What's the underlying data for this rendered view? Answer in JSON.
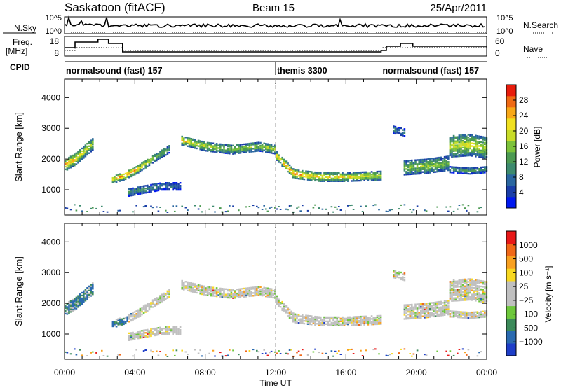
{
  "header": {
    "station": "Saskatoon (fitACF)",
    "beam": "Beam 15",
    "date": "25/Apr/2011"
  },
  "strips": {
    "nsky_label": "N.Sky",
    "nsky_ticks": [
      "10^5",
      "10^0"
    ],
    "nsearch_label": "N.Search",
    "nsearch_ticks": [
      "10^5",
      "10^0"
    ],
    "freq_label": "Freq.",
    "freq_unit": "[MHz]",
    "freq_ticks": [
      "18",
      "8"
    ],
    "nave_label": "Nave",
    "nave_ticks": [
      "60",
      "0"
    ],
    "cpid_label": "CPID"
  },
  "cpid_segments": [
    {
      "label": "normalsound (fast) 157",
      "start_hour": 0.0,
      "end_hour": 12.0
    },
    {
      "label": "themis 3300",
      "start_hour": 12.0,
      "end_hour": 18.0
    },
    {
      "label": "normalsound (fast) 157",
      "start_hour": 18.0,
      "end_hour": 24.0
    }
  ],
  "chart_data": [
    {
      "type": "heatmap",
      "panel": "power",
      "ylabel": "Slant Range [km]",
      "xlabel": "Time UT",
      "xlim_hours": [
        0,
        24
      ],
      "ylim": [
        180,
        4600
      ],
      "xticks": [
        "00:00",
        "04:00",
        "08:00",
        "12:00",
        "16:00",
        "20:00",
        "00:00"
      ],
      "yticks": [
        1000,
        2000,
        3000,
        4000
      ],
      "colorbar": {
        "label": "Power [dB]",
        "ticks": [
          "28",
          "24",
          "20",
          "16",
          "12",
          "8",
          "4"
        ],
        "range": [
          0,
          30
        ],
        "colors": [
          "#0018f0",
          "#1a3ea8",
          "#2a66a0",
          "#3d8a6e",
          "#4c9a52",
          "#7cc23a",
          "#c8dc28",
          "#f0e020",
          "#f8a818",
          "#f06a14",
          "#e81c0c"
        ]
      },
      "traces": [
        {
          "name": "track-a",
          "hours": [
            0.0,
            0.6,
            1.2,
            1.6
          ],
          "ranges": [
            1800,
            2000,
            2300,
            2500
          ],
          "intensity": [
            0.75,
            0.65,
            0.6,
            0.45
          ],
          "halfwidth": 200
        },
        {
          "name": "track-b",
          "hours": [
            2.6,
            3.4,
            4.1,
            5.0,
            6.0
          ],
          "ranges": [
            1300,
            1450,
            1650,
            2000,
            2350
          ],
          "intensity": [
            0.55,
            0.8,
            0.7,
            0.5,
            0.4
          ],
          "halfwidth": 130
        },
        {
          "name": "track-c",
          "hours": [
            6.6,
            8.0,
            9.5,
            11.0,
            12.0
          ],
          "ranges": [
            2600,
            2400,
            2300,
            2400,
            2300
          ],
          "intensity": [
            0.65,
            0.55,
            0.45,
            0.5,
            0.5
          ],
          "halfwidth": 150
        },
        {
          "name": "track-d",
          "hours": [
            12.0,
            13.0,
            14.5,
            16.0,
            18.0
          ],
          "ranges": [
            2100,
            1500,
            1400,
            1400,
            1450
          ],
          "intensity": [
            0.7,
            0.8,
            0.65,
            0.6,
            0.55
          ],
          "halfwidth": 140
        },
        {
          "name": "track-e",
          "hours": [
            3.6,
            4.5,
            5.5,
            6.6
          ],
          "ranges": [
            900,
            1000,
            1100,
            1100
          ],
          "intensity": [
            0.3,
            0.3,
            0.25,
            0.2
          ],
          "halfwidth": 120
        },
        {
          "name": "track-f",
          "hours": [
            19.2,
            20.5,
            21.8
          ],
          "ranges": [
            1700,
            1750,
            1850
          ],
          "intensity": [
            0.45,
            0.5,
            0.45
          ],
          "halfwidth": 230
        },
        {
          "name": "track-g",
          "hours": [
            21.8,
            23.0,
            24.0
          ],
          "ranges": [
            2400,
            2450,
            2350
          ],
          "intensity": [
            0.55,
            0.6,
            0.5
          ],
          "halfwidth": 350
        },
        {
          "name": "track-h",
          "hours": [
            21.8,
            23.0,
            24.0
          ],
          "ranges": [
            1650,
            1600,
            1650
          ],
          "intensity": [
            0.35,
            0.35,
            0.35
          ],
          "halfwidth": 100
        },
        {
          "name": "track-i",
          "hours": [
            18.6,
            19.3
          ],
          "ranges": [
            2950,
            2850
          ],
          "intensity": [
            0.3,
            0.3
          ],
          "halfwidth": 120
        }
      ]
    },
    {
      "type": "heatmap",
      "panel": "velocity",
      "ylabel": "Slant Range [km]",
      "xlabel": "Time UT",
      "xlim_hours": [
        0,
        24
      ],
      "ylim": [
        180,
        4600
      ],
      "xticks": [
        "00:00",
        "04:00",
        "08:00",
        "12:00",
        "16:00",
        "20:00",
        "00:00"
      ],
      "yticks": [
        1000,
        2000,
        3000,
        4000
      ],
      "colorbar": {
        "label": "Velocity [m s⁻¹]",
        "ticks": [
          "1000",
          "500",
          "100",
          "25",
          "−25",
          "−100",
          "−500",
          "−1000"
        ],
        "colors": [
          "#1e3ec8",
          "#2a6ab0",
          "#3c8a5a",
          "#6ec83c",
          "#c0c0c0",
          "#c0c0c0",
          "#f8d820",
          "#f8a020",
          "#f06818",
          "#e81818"
        ]
      }
    }
  ]
}
